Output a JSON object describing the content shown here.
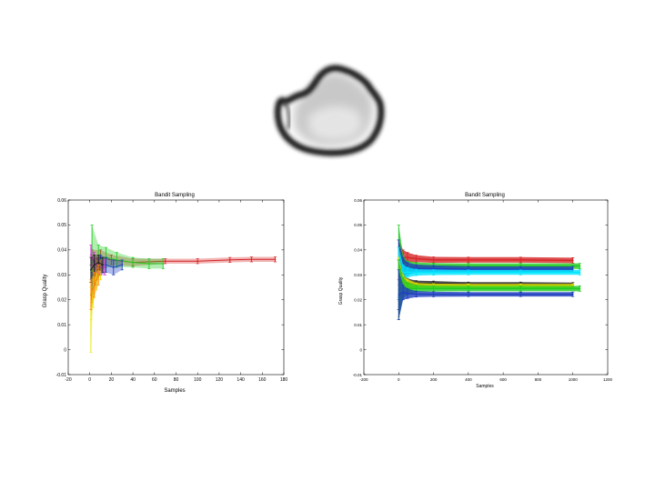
{
  "panel_image": {
    "icon": "grasp-object-outline-icon"
  },
  "chart_data": [
    {
      "type": "line",
      "title": "Bandit Sampling",
      "xlabel": "Samples",
      "ylabel": "Grasp Quality",
      "xlim": [
        -20,
        180
      ],
      "ylim": [
        -0.01,
        0.06
      ],
      "xticks": [
        -20,
        0,
        20,
        40,
        60,
        80,
        100,
        120,
        140,
        160,
        180
      ],
      "yticks": [
        -0.01,
        0,
        0.01,
        0.02,
        0.03,
        0.04,
        0.05,
        0.06
      ],
      "error_bars": true,
      "series": [
        {
          "color": "#d62728",
          "x": [
            2,
            10,
            20,
            40,
            70,
            100,
            130,
            150,
            172
          ],
          "y": [
            0.036,
            0.037,
            0.036,
            0.035,
            0.0355,
            0.0355,
            0.036,
            0.0362,
            0.0362
          ],
          "err": [
            0.004,
            0.003,
            0.002,
            0.0015,
            0.001,
            0.001,
            0.001,
            0.001,
            0.001
          ]
        },
        {
          "color": "#22cc22",
          "x": [
            2,
            8,
            15,
            25,
            40,
            55,
            68
          ],
          "y": [
            0.035,
            0.036,
            0.037,
            0.036,
            0.035,
            0.0345,
            0.0345
          ],
          "err": [
            0.015,
            0.006,
            0.004,
            0.003,
            0.002,
            0.002,
            0.002
          ]
        },
        {
          "color": "#1f3fbf",
          "x": [
            2,
            5,
            10,
            15,
            22,
            30
          ],
          "y": [
            0.025,
            0.031,
            0.034,
            0.034,
            0.033,
            0.034
          ],
          "err": [
            0.006,
            0.005,
            0.004,
            0.003,
            0.003,
            0.002
          ]
        },
        {
          "color": "#e6e600",
          "x": [
            1,
            3,
            6,
            10
          ],
          "y": [
            0.012,
            0.025,
            0.03,
            0.032
          ],
          "err": [
            0.013,
            0.008,
            0.006,
            0.004
          ]
        },
        {
          "color": "#cc33cc",
          "x": [
            1,
            4,
            8,
            14
          ],
          "y": [
            0.038,
            0.035,
            0.033,
            0.033
          ],
          "err": [
            0.004,
            0.004,
            0.003,
            0.003
          ]
        },
        {
          "color": "#222222",
          "x": [
            1,
            4,
            8,
            12
          ],
          "y": [
            0.032,
            0.034,
            0.035,
            0.034
          ],
          "err": [
            0.005,
            0.004,
            0.003,
            0.003
          ]
        },
        {
          "color": "#ff8800",
          "x": [
            1,
            4,
            8
          ],
          "y": [
            0.022,
            0.026,
            0.03
          ],
          "err": [
            0.006,
            0.005,
            0.004
          ]
        }
      ]
    },
    {
      "type": "line",
      "title": "Bandit Sampling",
      "xlabel": "Samples",
      "ylabel": "Grasp Quality",
      "xlim": [
        -200,
        1200
      ],
      "ylim": [
        -0.01,
        0.06
      ],
      "xticks": [
        -200,
        0,
        200,
        400,
        600,
        800,
        1000,
        1200
      ],
      "yticks": [
        -0.01,
        0,
        0.01,
        0.02,
        0.03,
        0.04,
        0.05,
        0.06
      ],
      "error_bars": true,
      "series": [
        {
          "color": "#d62728",
          "x": [
            0,
            25,
            50,
            100,
            200,
            400,
            700,
            1000
          ],
          "y": [
            0.036,
            0.037,
            0.037,
            0.0365,
            0.036,
            0.036,
            0.036,
            0.0358
          ],
          "err": [
            0.008,
            0.003,
            0.002,
            0.0014,
            0.0012,
            0.0011,
            0.0011,
            0.0011
          ]
        },
        {
          "color": "#22cc22",
          "x": [
            0,
            25,
            50,
            100,
            200,
            400,
            700,
            1040
          ],
          "y": [
            0.033,
            0.034,
            0.033,
            0.0335,
            0.0335,
            0.0335,
            0.0335,
            0.0335
          ],
          "err": [
            0.017,
            0.004,
            0.0025,
            0.0015,
            0.0012,
            0.0011,
            0.0011,
            0.0011
          ]
        },
        {
          "color": "#1f3fbf",
          "x": [
            0,
            25,
            50,
            100,
            200,
            400,
            700,
            1000
          ],
          "y": [
            0.032,
            0.033,
            0.0325,
            0.0325,
            0.0325,
            0.0322,
            0.0322,
            0.0322
          ],
          "err": [
            0.012,
            0.004,
            0.0025,
            0.0016,
            0.0013,
            0.0012,
            0.0012,
            0.0012
          ]
        },
        {
          "color": "#00e5ff",
          "x": [
            0,
            25,
            50,
            100,
            200,
            400,
            700,
            1040
          ],
          "y": [
            0.031,
            0.031,
            0.031,
            0.031,
            0.031,
            0.031,
            0.031,
            0.031
          ],
          "err": [
            0.01,
            0.003,
            0.002,
            0.0013,
            0.0011,
            0.001,
            0.001,
            0.001
          ]
        },
        {
          "color": "#222222",
          "x": [
            0,
            25,
            50,
            100,
            200,
            400,
            700,
            1000
          ],
          "y": [
            0.026,
            0.027,
            0.0265,
            0.0265,
            0.0265,
            0.0262,
            0.0262,
            0.026
          ],
          "err": [
            0.01,
            0.003,
            0.002,
            0.0012,
            0.001,
            0.0009,
            0.0009,
            0.0009
          ]
        },
        {
          "color": "#e6e600",
          "x": [
            0,
            25,
            50,
            100,
            200,
            400,
            700,
            1000
          ],
          "y": [
            0.025,
            0.026,
            0.0258,
            0.0256,
            0.0255,
            0.0255,
            0.0255,
            0.0255
          ],
          "err": [
            0.012,
            0.004,
            0.0025,
            0.0012,
            0.001,
            0.0009,
            0.0009,
            0.0009
          ]
        },
        {
          "color": "#22cc22",
          "x": [
            0,
            25,
            50,
            100,
            200,
            400,
            700,
            1040
          ],
          "y": [
            0.024,
            0.025,
            0.0245,
            0.0245,
            0.0245,
            0.0245,
            0.0245,
            0.0245
          ],
          "err": [
            0.012,
            0.004,
            0.0025,
            0.0014,
            0.0012,
            0.0011,
            0.0011,
            0.0011
          ]
        },
        {
          "color": "#1f3fbf",
          "x": [
            0,
            25,
            50,
            100,
            200,
            400,
            700,
            1000
          ],
          "y": [
            0.022,
            0.023,
            0.0225,
            0.0223,
            0.0222,
            0.0222,
            0.0222,
            0.0222
          ],
          "err": [
            0.01,
            0.003,
            0.002,
            0.0012,
            0.001,
            0.0009,
            0.0009,
            0.0009
          ]
        }
      ]
    }
  ]
}
